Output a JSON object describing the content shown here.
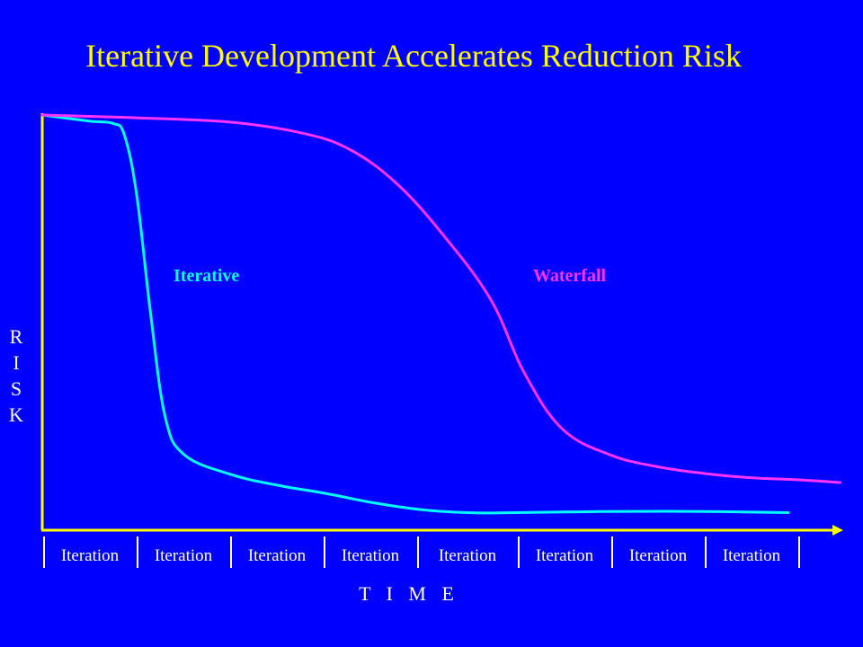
{
  "slide": {
    "title": "Iterative Development Accelerates Reduction Risk"
  },
  "chart_data": {
    "type": "line",
    "title": "Iterative Development Accelerates Reduction Risk",
    "xlabel": "T I M E",
    "ylabel": "RISK",
    "ylabel_letters": [
      "R",
      "I",
      "S",
      "K"
    ],
    "categories": [
      "Iteration",
      "Iteration",
      "Iteration",
      "Iteration",
      "Iteration",
      "Iteration",
      "Iteration",
      "Iteration"
    ],
    "axis_color": "#ffff00",
    "background": "#0000ff",
    "grid": false,
    "xlim": [
      0,
      8.5
    ],
    "ylim": [
      0,
      100
    ],
    "series": [
      {
        "name": "Iterative",
        "color": "#00ffff",
        "label": "Iterative",
        "points": [
          [
            0,
            100
          ],
          [
            0.5,
            98.5
          ],
          [
            0.75,
            97.9
          ],
          [
            0.87,
            95
          ],
          [
            1.0,
            80
          ],
          [
            1.15,
            50
          ],
          [
            1.3,
            25
          ],
          [
            1.5,
            15.5
          ],
          [
            2.0,
            10.5
          ],
          [
            2.5,
            7.8
          ],
          [
            3.0,
            5.8
          ],
          [
            3.5,
            3.5
          ],
          [
            4.0,
            1.8
          ],
          [
            4.5,
            1.0
          ],
          [
            5.0,
            1.0
          ],
          [
            6.0,
            1.3
          ],
          [
            7.0,
            1.3
          ],
          [
            7.9,
            1.0
          ]
        ]
      },
      {
        "name": "Waterfall",
        "color": "#ff33ff",
        "label": "Waterfall",
        "points": [
          [
            0,
            100
          ],
          [
            1.0,
            99.3
          ],
          [
            2.0,
            98.2
          ],
          [
            2.75,
            95.5
          ],
          [
            3.25,
            91.5
          ],
          [
            3.75,
            83
          ],
          [
            4.25,
            70
          ],
          [
            4.75,
            54
          ],
          [
            5.1,
            36
          ],
          [
            5.5,
            22
          ],
          [
            6.0,
            15.5
          ],
          [
            6.5,
            12.5
          ],
          [
            7.0,
            10.8
          ],
          [
            7.5,
            9.7
          ],
          [
            8.0,
            9.2
          ],
          [
            8.45,
            8.5
          ]
        ]
      }
    ]
  }
}
